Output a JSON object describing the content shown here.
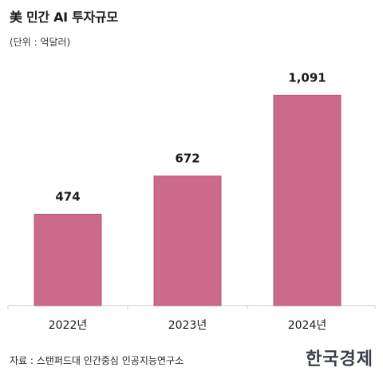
{
  "header": {
    "title": "美 민간 AI 투자규모",
    "unit": "(단위 : 억달러)"
  },
  "footer": {
    "source": "자료 : 스탠퍼드대 인간중심 인공지능연구소",
    "logo": "한국경제"
  },
  "chart_data": {
    "type": "bar",
    "title": "美 민간 AI 투자규모",
    "unit": "(단위 : 억달러)",
    "categories": [
      "2022년",
      "2023년",
      "2024년"
    ],
    "values": [
      474,
      672,
      1091
    ],
    "value_labels": [
      "474",
      "672",
      "1,091"
    ],
    "bar_color": "#cc6a8c",
    "bar_edge_color": "#b85577",
    "grid": false,
    "legend": "none",
    "ylim": [
      0,
      1200
    ]
  }
}
